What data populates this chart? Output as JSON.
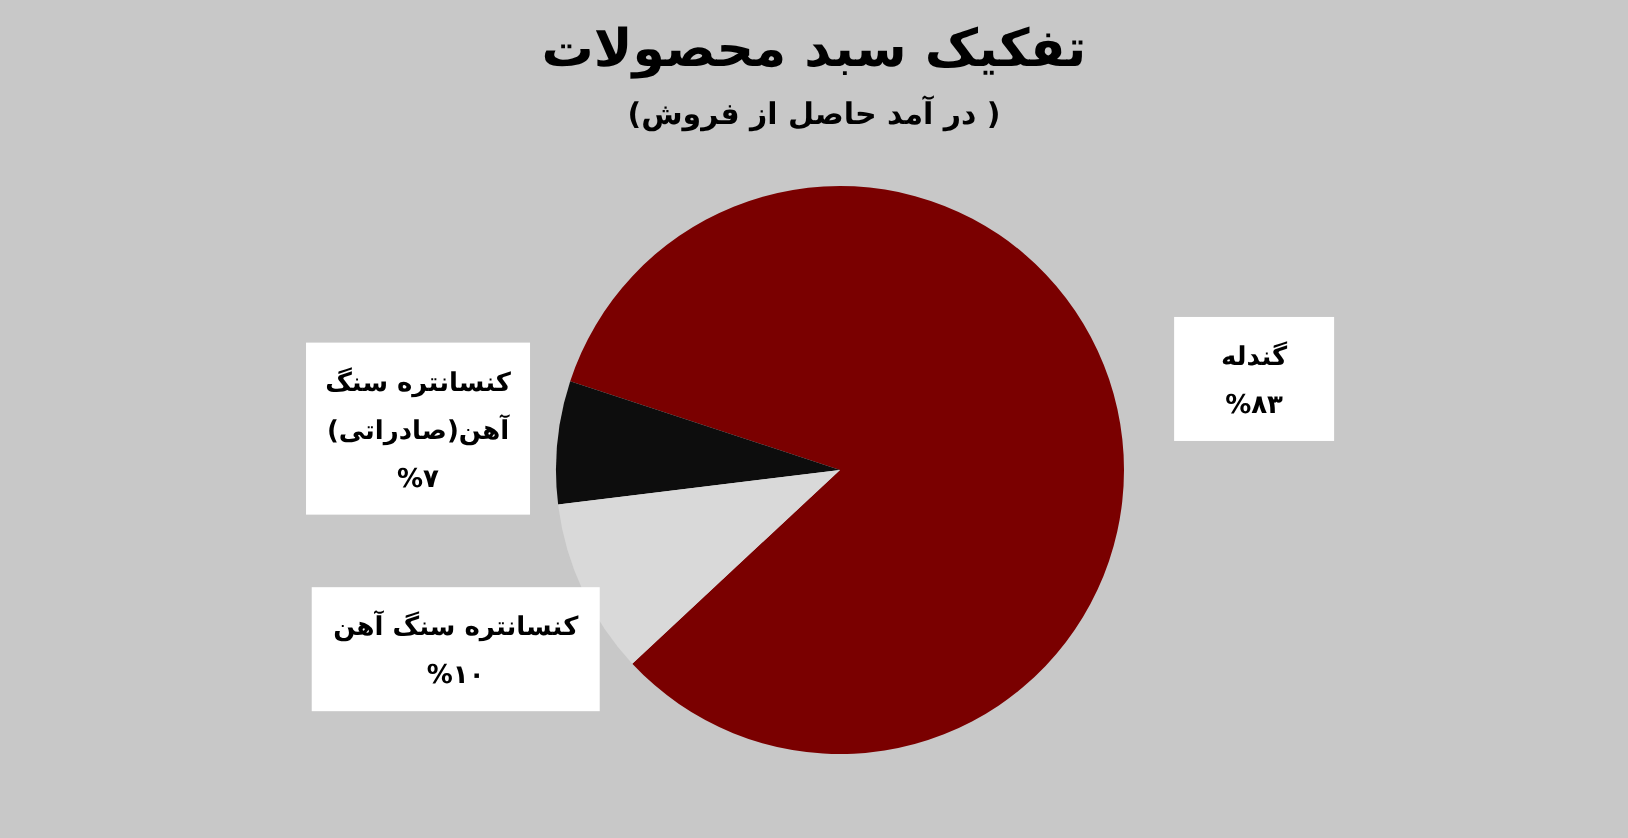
{
  "chart_data": {
    "type": "pie",
    "title": "تفکیک سبد محصولات",
    "subtitle": "(در آمد حاصل از فروش )",
    "categories": [
      "گندله",
      "کنسانتره سنگ آهن(صادراتی)",
      "کنسانتره سنگ آهن"
    ],
    "values": [
      83,
      7,
      10
    ],
    "value_labels": [
      "%۸۳",
      "%۷",
      "%۱۰"
    ],
    "colors": [
      "#7a0000",
      "#0d0d0d",
      "#d9d9d9"
    ]
  }
}
